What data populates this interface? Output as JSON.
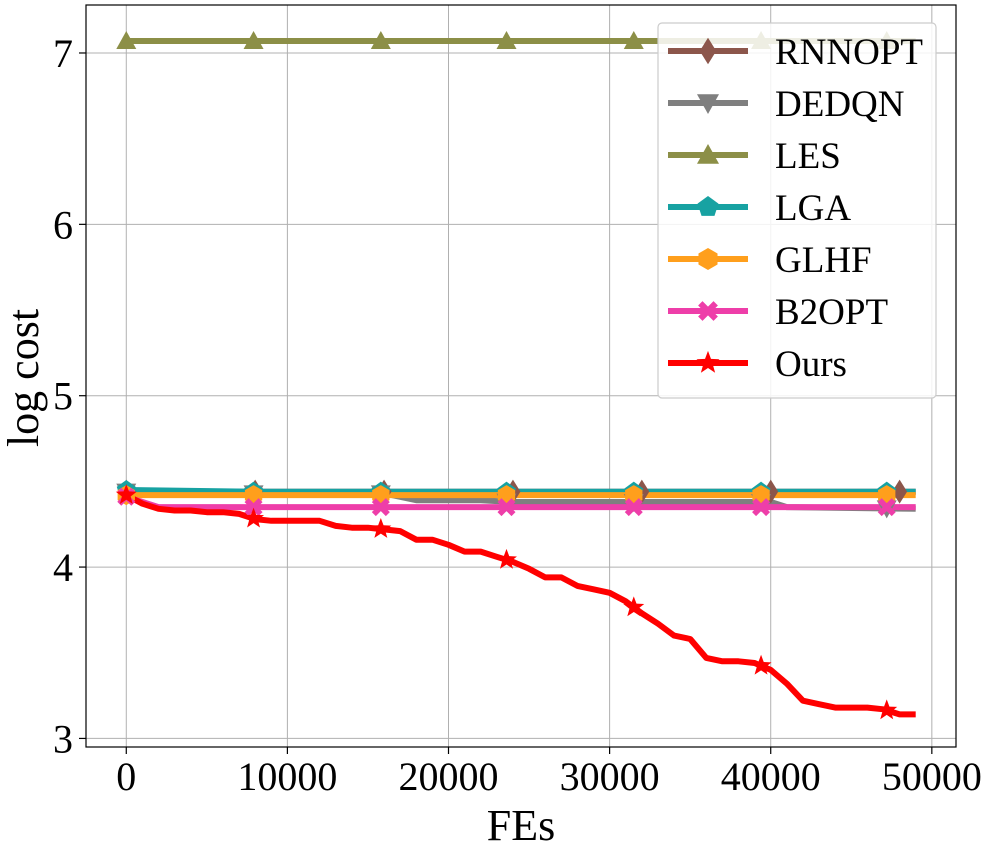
{
  "chart_data": {
    "type": "line",
    "title": "",
    "xlabel": "FEs",
    "ylabel": "log cost",
    "xlim": [
      -2500,
      51500
    ],
    "ylim": [
      2.95,
      7.28
    ],
    "xticks": [
      0,
      10000,
      20000,
      30000,
      40000,
      50000
    ],
    "xtick_labels": [
      "0",
      "10000",
      "20000",
      "30000",
      "40000",
      "50000"
    ],
    "yticks": [
      3,
      4,
      5,
      6,
      7
    ],
    "ytick_labels": [
      "3",
      "4",
      "5",
      "6",
      "7"
    ],
    "grid": true,
    "legend_position": "top-right",
    "series": [
      {
        "name": "RNNOPT",
        "color": "#8c564b",
        "marker": "diamond",
        "x": [
          0,
          8000,
          16000,
          24000,
          32000,
          40000,
          48000,
          49000
        ],
        "y": [
          4.44,
          4.44,
          4.44,
          4.44,
          4.44,
          4.44,
          4.44,
          4.44
        ],
        "marker_x": [
          0,
          8000,
          16000,
          24000,
          32000,
          40000,
          48000
        ]
      },
      {
        "name": "DEDQN",
        "color": "#7f7f7f",
        "marker": "triangle-down",
        "x": [
          0,
          8000,
          16000,
          18000,
          22000,
          24000,
          40000,
          41000,
          49000
        ],
        "y": [
          4.44,
          4.43,
          4.43,
          4.39,
          4.39,
          4.38,
          4.38,
          4.35,
          4.34
        ],
        "marker_x": [
          0,
          7900,
          15800,
          23600,
          31500,
          39400,
          47200
        ]
      },
      {
        "name": "LES",
        "color": "#8c8f47",
        "marker": "triangle-up",
        "x": [
          0,
          7900,
          15800,
          23600,
          31500,
          39400,
          47200,
          49000
        ],
        "y": [
          7.07,
          7.07,
          7.07,
          7.07,
          7.07,
          7.07,
          7.07,
          7.07
        ],
        "marker_x": [
          0,
          7900,
          15800,
          23600,
          31500,
          39400,
          47200
        ]
      },
      {
        "name": "LGA",
        "color": "#17a2a2",
        "marker": "pentagon",
        "x": [
          0,
          8000,
          49000
        ],
        "y": [
          4.45,
          4.44,
          4.44
        ],
        "marker_x": [
          0,
          7900,
          15800,
          23600,
          31500,
          39400,
          47200
        ]
      },
      {
        "name": "GLHF",
        "color": "#ff9f1c",
        "marker": "hexagon",
        "x": [
          0,
          49000
        ],
        "y": [
          4.42,
          4.42
        ],
        "marker_x": [
          0,
          7900,
          15800,
          23600,
          31500,
          39400,
          47200
        ]
      },
      {
        "name": "B2OPT",
        "color": "#ee3ea9",
        "marker": "x",
        "x": [
          0,
          2000,
          49000
        ],
        "y": [
          4.41,
          4.35,
          4.35
        ],
        "marker_x": [
          0,
          7900,
          15800,
          23600,
          31500,
          39400,
          47200
        ]
      },
      {
        "name": "Ours",
        "color": "#ff0000",
        "marker": "star",
        "x": [
          0,
          1000,
          2000,
          3000,
          4000,
          5000,
          6000,
          7000,
          8000,
          9000,
          10000,
          11000,
          12000,
          13000,
          14000,
          15000,
          16000,
          17000,
          18000,
          19000,
          20000,
          21000,
          22000,
          23000,
          24000,
          25000,
          26000,
          27000,
          28000,
          29000,
          30000,
          31000,
          32000,
          33000,
          34000,
          35000,
          36000,
          37000,
          38000,
          39000,
          40000,
          41000,
          42000,
          43000,
          44000,
          45000,
          46000,
          47000,
          48000,
          49000
        ],
        "y": [
          4.42,
          4.37,
          4.34,
          4.33,
          4.33,
          4.32,
          4.32,
          4.31,
          4.28,
          4.27,
          4.27,
          4.27,
          4.27,
          4.24,
          4.23,
          4.23,
          4.22,
          4.21,
          4.16,
          4.16,
          4.13,
          4.09,
          4.09,
          4.06,
          4.03,
          3.99,
          3.94,
          3.94,
          3.89,
          3.87,
          3.85,
          3.8,
          3.73,
          3.67,
          3.6,
          3.58,
          3.47,
          3.45,
          3.45,
          3.44,
          3.4,
          3.32,
          3.22,
          3.2,
          3.18,
          3.18,
          3.18,
          3.17,
          3.14,
          3.14
        ],
        "marker_x": [
          0,
          7900,
          15800,
          23600,
          31500,
          39400,
          47200
        ]
      }
    ]
  }
}
